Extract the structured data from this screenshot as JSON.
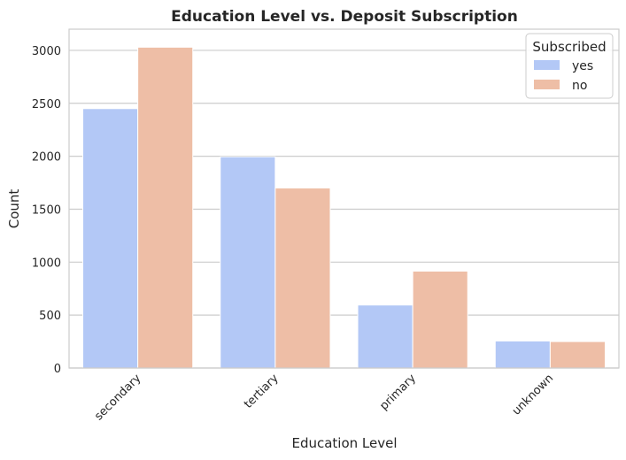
{
  "chart_data": {
    "type": "bar",
    "title": "Education Level vs. Deposit Subscription",
    "xlabel": "Education Level",
    "ylabel": "Count",
    "categories": [
      "secondary",
      "tertiary",
      "primary",
      "unknown"
    ],
    "series": [
      {
        "name": "yes",
        "color": "#b3c8f6",
        "values": [
          2450,
          1995,
          595,
          255
        ]
      },
      {
        "name": "no",
        "color": "#eebea6",
        "values": [
          3030,
          1700,
          915,
          250
        ]
      }
    ],
    "ylim": [
      0,
      3200
    ],
    "yticks": [
      0,
      500,
      1000,
      1500,
      2000,
      2500,
      3000
    ],
    "grid": true,
    "legend": {
      "title": "Subscribed",
      "placement": "top-right"
    }
  }
}
